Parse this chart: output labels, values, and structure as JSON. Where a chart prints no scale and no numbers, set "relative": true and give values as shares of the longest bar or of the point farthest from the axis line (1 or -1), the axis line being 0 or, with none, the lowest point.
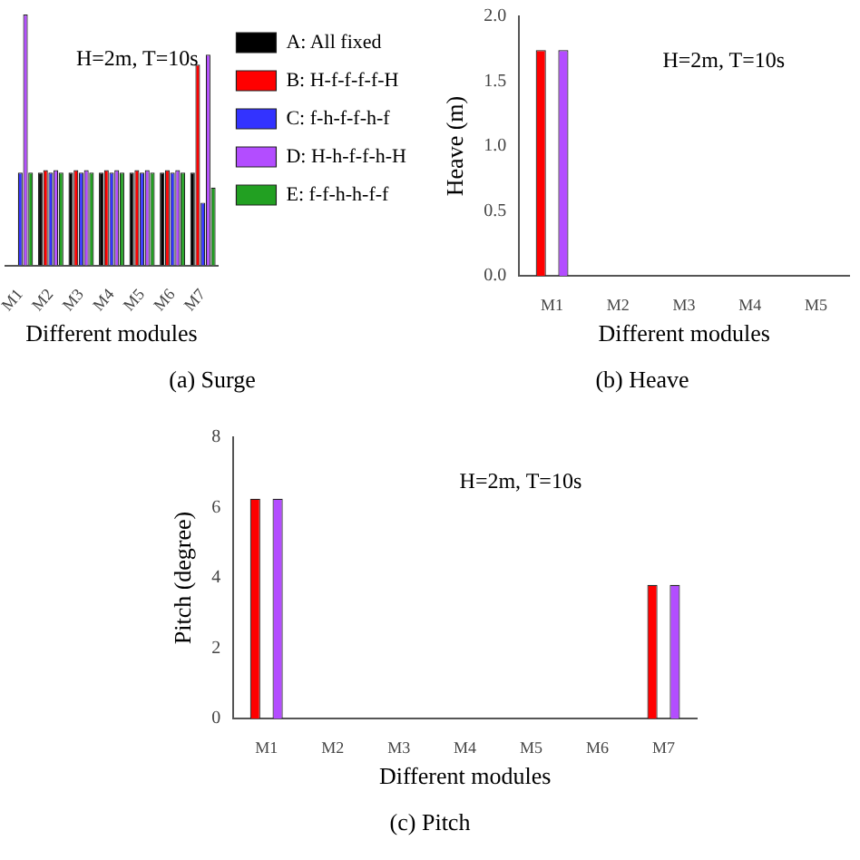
{
  "chart_data": [
    {
      "type": "bar",
      "title": "(a) Surge",
      "xlabel": "Different modules",
      "relative": true,
      "legend": "top right",
      "grid": false,
      "annotations": [
        "H=2m, T=10s"
      ],
      "categories": [
        "M1",
        "M2",
        "M3",
        "M4",
        "M5",
        "M6",
        "M7"
      ],
      "series": [
        {
          "name": "A: All fixed",
          "color": "#000000",
          "values": [
            null,
            0.37,
            0.37,
            0.37,
            0.37,
            0.37,
            0.37
          ]
        },
        {
          "name": "B: H-f-f-f-f-H",
          "color": "#ff0000",
          "values": [
            null,
            0.38,
            0.38,
            0.38,
            0.38,
            0.38,
            0.8
          ]
        },
        {
          "name": "C: f-h-f-f-h-f",
          "color": "#3333ff",
          "values": [
            0.37,
            0.37,
            0.37,
            0.37,
            0.37,
            0.37,
            0.25
          ]
        },
        {
          "name": "D: H-h-f-f-h-H",
          "color": "#b34dff",
          "values": [
            1,
            0.38,
            0.38,
            0.38,
            0.38,
            0.38,
            0.84
          ]
        },
        {
          "name": "E: f-f-h-h-f-f",
          "color": "#22a022",
          "values": [
            0.37,
            0.37,
            0.37,
            0.37,
            0.37,
            0.37,
            0.31
          ]
        }
      ]
    },
    {
      "type": "bar",
      "title": "(b) Heave",
      "xlabel": "Different modules",
      "ylabel": "Heave (m)",
      "grid": false,
      "annotations": [
        "H=2m, T=10s"
      ],
      "categories": [
        "M1",
        "M2",
        "M3",
        "M4",
        "M5"
      ],
      "ylim": [
        0,
        2
      ],
      "yticks": [
        {
          "value": 0,
          "label": "0.0"
        },
        {
          "value": 0.5,
          "label": "0.5"
        },
        {
          "value": 1,
          "label": "1.0"
        },
        {
          "value": 1.5,
          "label": "1.5"
        },
        {
          "value": 2,
          "label": "2.0"
        }
      ],
      "series": [
        {
          "color": "#000000",
          "values": [
            0,
            0,
            0,
            0,
            0
          ]
        },
        {
          "color": "#ff0000",
          "values": [
            1.74,
            0,
            0,
            0,
            0
          ]
        },
        {
          "color": "#3333ff",
          "values": [
            0,
            0,
            0,
            0,
            0
          ]
        },
        {
          "color": "#b34dff",
          "values": [
            1.74,
            0,
            0,
            0,
            0
          ]
        },
        {
          "color": "#22a022",
          "values": [
            0,
            0,
            0,
            0,
            0
          ]
        }
      ]
    },
    {
      "type": "bar",
      "title": "(c) Pitch",
      "xlabel": "Different modules",
      "ylabel": "Pitch (degree)",
      "grid": false,
      "annotations": [
        "H=2m, T=10s"
      ],
      "categories": [
        "M1",
        "M2",
        "M3",
        "M4",
        "M5",
        "M6",
        "M7"
      ],
      "ylim": [
        0,
        8
      ],
      "yticks": [
        0,
        2,
        4,
        6,
        8
      ],
      "series": [
        {
          "color": "#000000",
          "values": [
            0,
            0,
            0,
            0,
            0,
            0,
            0
          ]
        },
        {
          "color": "#ff0000",
          "values": [
            6.25,
            0,
            0,
            0,
            0,
            0,
            3.8
          ]
        },
        {
          "color": "#3333ff",
          "values": [
            0,
            0,
            0,
            0,
            0,
            0,
            0
          ]
        },
        {
          "color": "#b34dff",
          "values": [
            6.25,
            0,
            0,
            0,
            0,
            0,
            3.8
          ]
        },
        {
          "color": "#22a022",
          "values": [
            0,
            0,
            0,
            0,
            0,
            0,
            0
          ]
        }
      ]
    }
  ]
}
